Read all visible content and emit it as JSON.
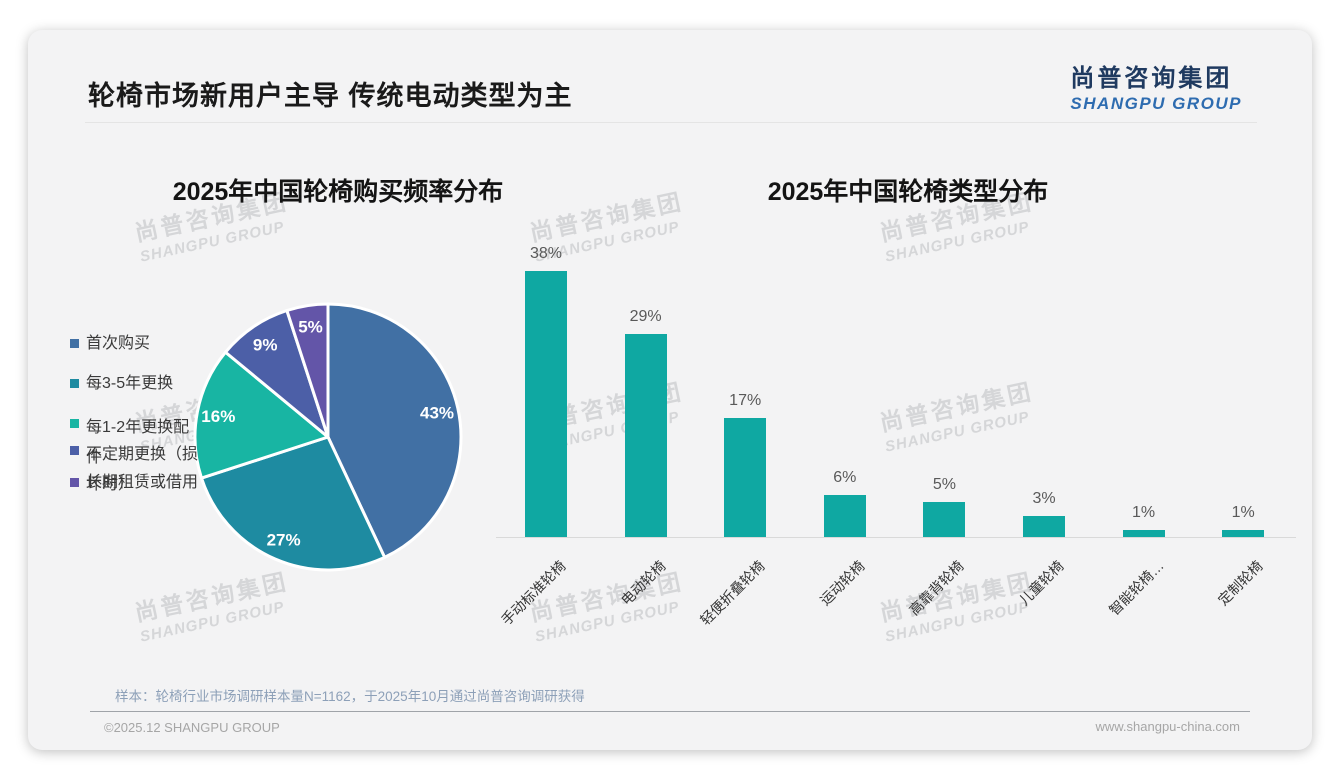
{
  "page": {
    "title": "轮椅市场新用户主导 传统电动类型为主",
    "logo": {
      "cn": "尚普咨询集团",
      "en": "SHANGPU GROUP"
    },
    "watermark": {
      "cn": "尚普咨询集团",
      "en": "SHANGPU GROUP"
    },
    "footer": {
      "note": "样本：轮椅行业市场调研样本量N=1162，于2025年10月通过尚普咨询调研获得",
      "copyright": "©2025.12 SHANGPU GROUP",
      "website": "www.shangpu-china.com"
    }
  },
  "colors": {
    "slide_background": "#f3f3f4",
    "title_text": "#1a1a1a",
    "logo_cn": "#1f3a60",
    "logo_en": "#2e6cb0",
    "value_label": "#595959",
    "note_text": "#8da0b8",
    "footer_text": "#a6a6a6",
    "axis_line": "#d9d9d9",
    "watermark": "#d5d6d8"
  },
  "chart_data": [
    {
      "type": "pie",
      "title": "2025年中国轮椅购买频率分布",
      "labels": [
        "首次购买",
        "每3-5年更换",
        "每1-2年更换配件",
        "不定期更换（损坏时）",
        "长期租赁或借用"
      ],
      "values": [
        43,
        27,
        16,
        9,
        5
      ],
      "data_labels": [
        "43%",
        "27%",
        "16%",
        "9%",
        "5%"
      ],
      "slice_colors": [
        "#4170a4",
        "#1e8ba1",
        "#18b5a3",
        "#4c5fa7",
        "#6355a8"
      ],
      "legend_position": "left",
      "start_angle_deg": 0,
      "direction": "clockwise",
      "slice_border_color": "#ffffff"
    },
    {
      "type": "bar",
      "title": "2025年中国轮椅类型分布",
      "categories": [
        "手动标准轮椅",
        "电动轮椅",
        "轻便折叠轮椅",
        "运动轮椅",
        "高靠背轮椅",
        "儿童轮椅",
        "智能轮椅…",
        "定制轮椅"
      ],
      "values": [
        38,
        29,
        17,
        6,
        5,
        3,
        1,
        1
      ],
      "data_labels": [
        "38%",
        "29%",
        "17%",
        "6%",
        "5%",
        "3%",
        "1%",
        "1%"
      ],
      "bar_color": "#0fa8a2",
      "ylim": [
        0,
        40
      ],
      "grid": false,
      "legend": "none",
      "xlabel": "",
      "ylabel": ""
    }
  ]
}
